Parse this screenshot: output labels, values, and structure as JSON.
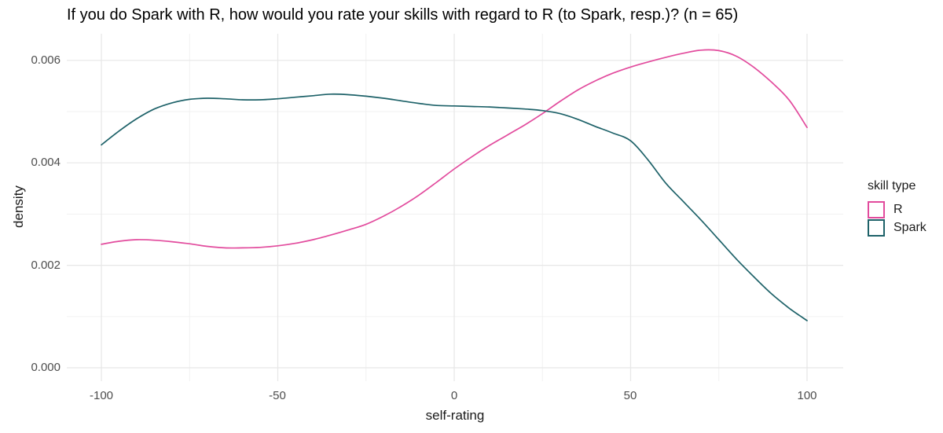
{
  "title": "If you do Spark with R, how would you rate your skills with regard to R (to Spark, resp.)? (n = 65)",
  "axes": {
    "x": {
      "label": "self-rating",
      "ticks": [
        "-100",
        "-50",
        "0",
        "50",
        "100"
      ]
    },
    "y": {
      "label": "density",
      "ticks": [
        "0.006",
        "0.004",
        "0.002",
        "0.000"
      ]
    }
  },
  "legend": {
    "title": "skill type",
    "items": [
      {
        "label": "R",
        "color": "#E24B9D"
      },
      {
        "label": "Spark",
        "color": "#1E6269"
      }
    ]
  },
  "colors": {
    "r_series": "#E24B9D",
    "spark_series": "#1E6269",
    "grid_major": "#E7E7E7",
    "grid_minor": "#F0F0F0",
    "tick_text": "#4d4d4d"
  },
  "chart_data": {
    "type": "line",
    "title": "If you do Spark with R, how would you rate your skills with regard to R (to Spark, resp.)? (n = 65)",
    "xlabel": "self-rating",
    "ylabel": "density",
    "xlim": [
      -100,
      100
    ],
    "ylim": [
      0,
      0.0062
    ],
    "x_ticks": [
      -100,
      -50,
      0,
      50,
      100
    ],
    "x_minor_ticks": [
      -75,
      -25,
      25,
      75
    ],
    "y_ticks": [
      0,
      0.002,
      0.004,
      0.006
    ],
    "y_minor_ticks": [
      0.001,
      0.003,
      0.005
    ],
    "grid": "major+minor",
    "legend_position": "right",
    "legend_title": "skill type",
    "x": [
      -100,
      -95,
      -90,
      -85,
      -80,
      -75,
      -70,
      -65,
      -60,
      -55,
      -50,
      -45,
      -40,
      -35,
      -30,
      -25,
      -20,
      -15,
      -10,
      -5,
      0,
      5,
      10,
      15,
      20,
      25,
      30,
      35,
      40,
      45,
      50,
      55,
      60,
      65,
      70,
      75,
      80,
      85,
      90,
      95,
      100
    ],
    "series": [
      {
        "name": "R",
        "color": "#E24B9D",
        "values": [
          0.00241,
          0.00247,
          0.0025,
          0.00249,
          0.00246,
          0.00242,
          0.00237,
          0.00234,
          0.00234,
          0.00235,
          0.00238,
          0.00243,
          0.0025,
          0.00259,
          0.00269,
          0.0028,
          0.00296,
          0.00315,
          0.00337,
          0.00362,
          0.00388,
          0.00412,
          0.00434,
          0.00454,
          0.00474,
          0.00496,
          0.0052,
          0.00542,
          0.0056,
          0.00575,
          0.00587,
          0.00597,
          0.00606,
          0.00614,
          0.0062,
          0.00619,
          0.00608,
          0.00586,
          0.00557,
          0.00522,
          0.00469
        ]
      },
      {
        "name": "Spark",
        "color": "#1E6269",
        "values": [
          0.00435,
          0.00462,
          0.00486,
          0.00505,
          0.00517,
          0.00524,
          0.00526,
          0.00525,
          0.00523,
          0.00523,
          0.00525,
          0.00528,
          0.00531,
          0.00534,
          0.00533,
          0.0053,
          0.00526,
          0.00521,
          0.00516,
          0.00512,
          0.00511,
          0.0051,
          0.00509,
          0.00507,
          0.00505,
          0.00502,
          0.00496,
          0.00485,
          0.00471,
          0.00458,
          0.00443,
          0.00405,
          0.0036,
          0.00324,
          0.00288,
          0.0025,
          0.00212,
          0.00177,
          0.00144,
          0.00116,
          0.00092
        ]
      }
    ]
  }
}
